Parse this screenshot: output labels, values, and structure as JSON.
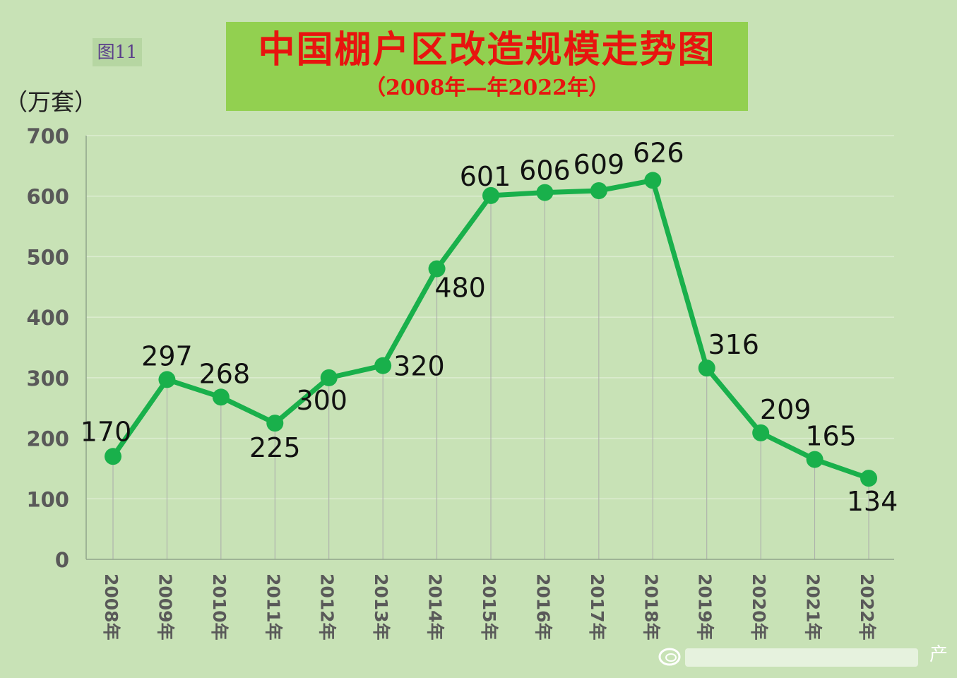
{
  "figure_label": "图11",
  "unit_label": "（万套）",
  "watermark_char": "产",
  "colors": {
    "background": "#c8e2b6",
    "title_box": "#92d050",
    "title_text": "#e8140f",
    "line": "#19b04b",
    "axis_text": "#595959"
  },
  "chart_data": {
    "type": "line",
    "title": "中国棚户区改造规模走势图",
    "subtitle": "（2008年—年2022年）",
    "ylabel": "（万套）",
    "xlabel": "",
    "ylim": [
      0,
      700
    ],
    "yticks": [
      0,
      100,
      200,
      300,
      400,
      500,
      600,
      700
    ],
    "grid": "horizontal",
    "categories": [
      "2008年",
      "2009年",
      "2010年",
      "2011年",
      "2012年",
      "2013年",
      "2014年",
      "2015年",
      "2016年",
      "2017年",
      "2018年",
      "2019年",
      "2020年",
      "2021年",
      "2022年"
    ],
    "series": [
      {
        "values": [
          170,
          297,
          268,
          225,
          300,
          320,
          480,
          601,
          606,
          609,
          626,
          316,
          209,
          165,
          134
        ]
      }
    ]
  }
}
